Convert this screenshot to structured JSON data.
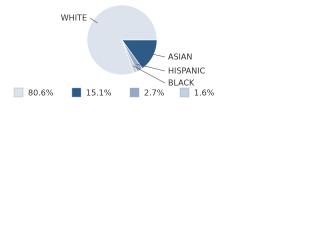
{
  "chart_data": {
    "type": "pie",
    "categories": [
      "WHITE",
      "ASIAN",
      "HISPANIC",
      "BLACK"
    ],
    "values": [
      80.6,
      15.1,
      2.7,
      1.6
    ],
    "value_labels": [
      "80.6%",
      "15.1%",
      "2.7%",
      "1.6%"
    ],
    "colors": [
      "#dde3ec",
      "#2d5a87",
      "#94aac3",
      "#c3d0de"
    ]
  }
}
